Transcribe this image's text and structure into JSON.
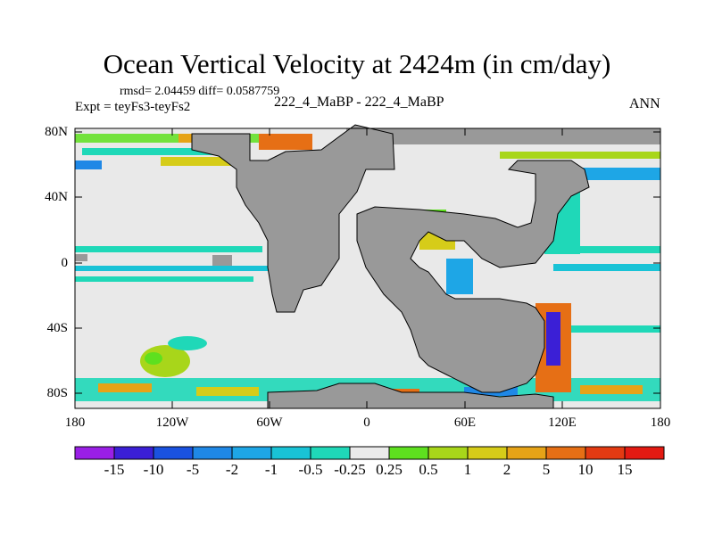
{
  "plot": {
    "title": "Ocean Vertical Velocity at 2424m (in cm/day)",
    "stats": "rmsd= 2.04459 diff= 0.0587759",
    "expt": "Expt = teyFs3-teyFs2",
    "subtitle": "222_4_MaBP - 222_4_MaBP",
    "season": "ANN"
  },
  "axes": {
    "lat_labels": [
      "80N",
      "40N",
      "0",
      "40S",
      "80S"
    ],
    "lon_labels": [
      "180",
      "120W",
      "60W",
      "0",
      "60E",
      "120E",
      "180"
    ],
    "lat_range": [
      -90,
      90
    ],
    "lon_range": [
      -180,
      180
    ]
  },
  "colorbar": {
    "labels": [
      "-15",
      "-10",
      "-5",
      "-2",
      "-1",
      "-0.5",
      "-0.25",
      "0.25",
      "0.5",
      "1",
      "2",
      "5",
      "10",
      "15"
    ],
    "colors": [
      "#9a1fe6",
      "#3b1fd6",
      "#1a52e0",
      "#1f88e6",
      "#1ea6e6",
      "#19c3d6",
      "#1fd8b8",
      "#ebebeb",
      "#5ee01f",
      "#a8d61a",
      "#d6cc19",
      "#e6a317",
      "#e66f15",
      "#e33a12",
      "#e31a12"
    ]
  },
  "colors": {
    "land": "#999999",
    "near_zero": "#e9e9e9",
    "frame": "#000000"
  }
}
